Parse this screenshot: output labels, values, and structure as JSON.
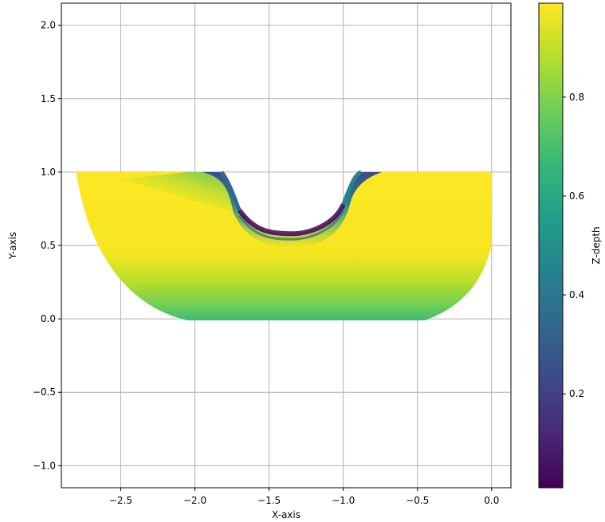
{
  "chart_data": {
    "type": "heatmap",
    "xlabel": "X-axis",
    "ylabel": "Y-axis",
    "xlim": [
      -2.9,
      0.13
    ],
    "ylim": [
      -1.15,
      2.15
    ],
    "xticks": [
      -2.5,
      -2.0,
      -1.5,
      -1.0,
      -0.5,
      0.0
    ],
    "xtick_labels": [
      "−2.5",
      "−2.0",
      "−1.5",
      "−1.0",
      "−0.5",
      "0.0"
    ],
    "yticks": [
      -1.0,
      -0.5,
      0.0,
      0.5,
      1.0,
      1.5,
      2.0
    ],
    "ytick_labels": [
      "−1.0",
      "−0.5",
      "0.0",
      "0.5",
      "1.0",
      "1.5",
      "2.0"
    ],
    "grid": true,
    "colorbar": {
      "label": "Z-depth",
      "range": [
        0.01,
        0.99
      ],
      "ticks": [
        0.2,
        0.4,
        0.6,
        0.8
      ],
      "tick_labels": [
        "0.2",
        "0.4",
        "0.6",
        "0.8"
      ],
      "colormap": "viridis",
      "colors": [
        "#440154",
        "#482878",
        "#3e4989",
        "#31688e",
        "#26828e",
        "#1f9e89",
        "#35b779",
        "#6ece58",
        "#b5de2b",
        "#fde725"
      ]
    },
    "region": {
      "outer_top_y": 1.0,
      "outer_left_x": -2.8,
      "outer_right_x": 0.0,
      "bottom_y": -0.01,
      "cutout_center_x": -1.35,
      "cutout_bottom_y": 0.58,
      "cutout_left_x": -1.8,
      "cutout_right_x": -0.95
    }
  }
}
